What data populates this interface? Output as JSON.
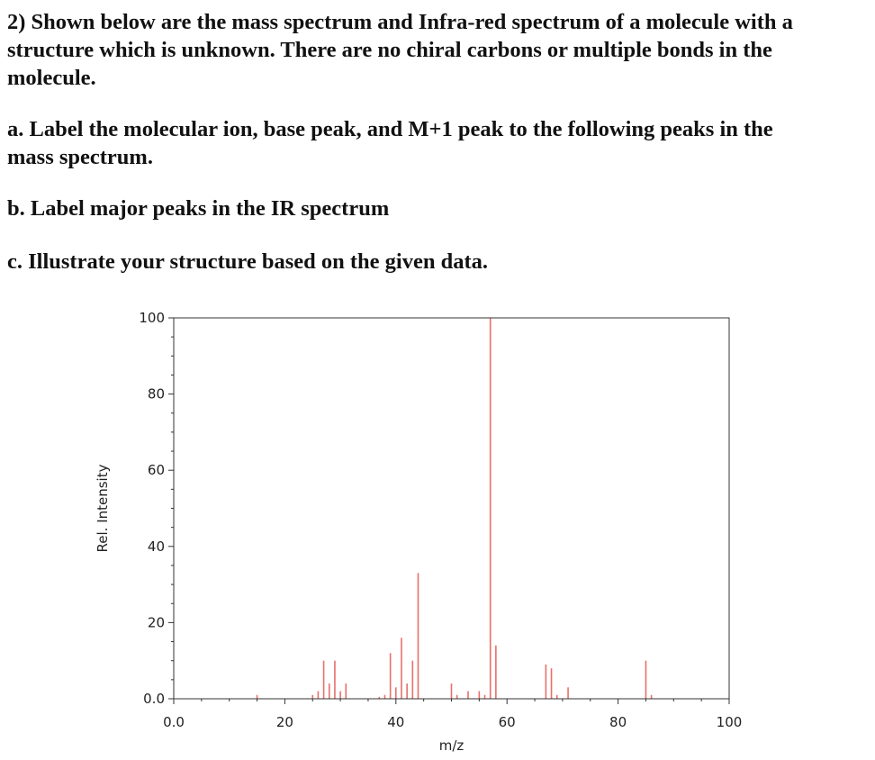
{
  "question": {
    "heading_lines": [
      "2) Shown below are the mass spectrum and Infra-red spectrum of a molecule with a",
      "structure which is unknown. There are no chiral carbons or multiple bonds in the",
      "molecule."
    ],
    "part_a_lines": [
      "a. Label the molecular ion, base peak, and M+1 peak to the following peaks in the",
      "mass spectrum."
    ],
    "part_b": "b. Label major peaks in the IR spectrum",
    "part_c": "c. Illustrate your structure based on the given data."
  },
  "chart_data": {
    "type": "bar",
    "title": "",
    "xlabel": "m/z",
    "ylabel": "Rel. Intensity",
    "xlim": [
      0,
      100
    ],
    "ylim": [
      0,
      100
    ],
    "xticks": [
      "0.0",
      "20",
      "40",
      "60",
      "80",
      "100"
    ],
    "yticks": [
      "0.0",
      "20",
      "40",
      "60",
      "80",
      "100"
    ],
    "grid": false,
    "bar_color": "#e8706a",
    "series": [
      {
        "x": [
          15,
          25,
          26,
          27,
          28,
          29,
          30,
          31,
          37,
          38,
          39,
          40,
          41,
          42,
          43,
          44,
          50,
          51,
          53,
          55,
          56,
          57,
          58,
          67,
          68,
          69,
          71,
          85,
          86
        ],
        "values": [
          1,
          1,
          2,
          10,
          4,
          10,
          2,
          4,
          0.5,
          1,
          12,
          3,
          16,
          4,
          10,
          33,
          4,
          1,
          2,
          2,
          1,
          100,
          14,
          9,
          8,
          1,
          3,
          10,
          1
        ]
      }
    ]
  }
}
